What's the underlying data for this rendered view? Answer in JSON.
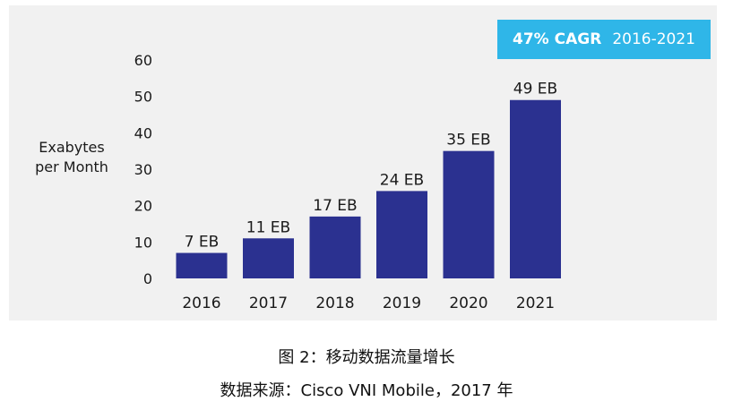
{
  "chart_data": {
    "type": "bar",
    "categories": [
      "2016",
      "2017",
      "2018",
      "2019",
      "2020",
      "2021"
    ],
    "values": [
      7,
      11,
      17,
      24,
      35,
      49
    ],
    "data_labels": [
      "7 EB",
      "11 EB",
      "17 EB",
      "24 EB",
      "35 EB",
      "49 EB"
    ],
    "ylabel_line1": "Exabytes",
    "ylabel_line2": "per Month",
    "ylim": [
      0,
      60
    ],
    "yticks": [
      "0",
      "10",
      "20",
      "30",
      "40",
      "50",
      "60"
    ],
    "ytick_values": [
      0,
      10,
      20,
      30,
      40,
      50,
      60
    ],
    "grid": false,
    "bar_color": "#2b3190",
    "badge": {
      "strong": "47% CAGR",
      "period": "2016-2021",
      "color": "#2fb6e8"
    }
  },
  "captions": {
    "title": "图 2：移动数据流量增长",
    "source": "数据来源：Cisco VNI Mobile，2017 年"
  }
}
